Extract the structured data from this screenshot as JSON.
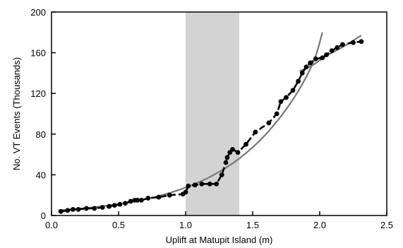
{
  "chart_data": {
    "type": "line",
    "xlabel": "Uplift at Matupit Island  (m)",
    "ylabel": "No. VT Events (Thousands)",
    "xlim": [
      0.0,
      2.5
    ],
    "ylim": [
      0,
      200
    ],
    "xticks": [
      0.0,
      0.5,
      1.0,
      1.5,
      2.0,
      2.5
    ],
    "xtick_labels": [
      "0.0",
      "0.5",
      "1.0",
      "1.5",
      "2.0",
      "2.5"
    ],
    "yticks": [
      0,
      40,
      80,
      120,
      160,
      200
    ],
    "ytick_labels": [
      "0",
      "40",
      "80",
      "120",
      "160",
      "200"
    ],
    "grid": false,
    "shaded_region": {
      "x_start": 1.0,
      "x_end": 1.4,
      "color": "#d3d3d3"
    },
    "colors": {
      "observed": "#000000",
      "fit": "#777777",
      "shade": "#d3d3d3"
    },
    "series": [
      {
        "style": "dashed-with-markers",
        "x": [
          0.07,
          0.12,
          0.16,
          0.2,
          0.26,
          0.32,
          0.38,
          0.43,
          0.47,
          0.51,
          0.55,
          0.59,
          0.62,
          0.64,
          0.67,
          0.72,
          0.8,
          0.88,
          0.98,
          1.0,
          1.02,
          1.07,
          1.12,
          1.18,
          1.23,
          1.27,
          1.3,
          1.31,
          1.33,
          1.35,
          1.39,
          1.45,
          1.52,
          1.62,
          1.68,
          1.71,
          1.75,
          1.8,
          1.84,
          1.87,
          1.9,
          1.93,
          1.97,
          2.02,
          2.05,
          2.09,
          2.13,
          2.17,
          2.25,
          2.31
        ],
        "y": [
          4,
          5,
          6,
          6,
          7,
          7,
          8,
          9,
          10,
          11,
          12,
          14,
          15,
          15,
          15,
          17,
          18,
          20,
          21,
          23,
          29,
          30,
          31,
          31,
          31,
          40,
          52,
          57,
          62,
          65,
          62,
          70,
          82,
          91,
          100,
          112,
          116,
          123,
          132,
          140,
          146,
          150,
          154,
          155,
          158,
          162,
          165,
          168,
          170,
          171
        ]
      },
      {
        "style": "smooth-fit",
        "x": [
          0.05,
          0.2,
          0.4,
          0.6,
          0.8,
          1.0,
          1.2,
          1.4,
          1.6,
          1.8,
          1.95,
          2.02
        ],
        "y": [
          5,
          6.6,
          9.4,
          13.5,
          19.2,
          27.5,
          39.2,
          56,
          80,
          114,
          150,
          180
        ]
      },
      {
        "style": "smooth-fit",
        "x": [
          1.85,
          1.95,
          2.05,
          2.15,
          2.25,
          2.31
        ],
        "y": [
          142,
          148,
          157,
          164,
          172,
          177
        ]
      }
    ]
  }
}
